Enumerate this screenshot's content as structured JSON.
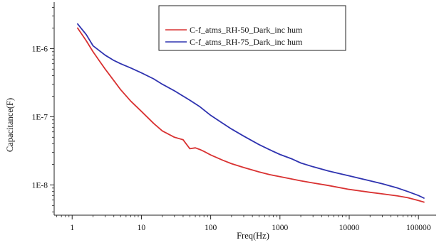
{
  "chart_data": {
    "type": "line",
    "title": "",
    "xlabel": "Freq(Hz)",
    "ylabel": "Capacitance(F)",
    "x_scale": "log",
    "y_scale": "log",
    "xlim": [
      0.55,
      180000
    ],
    "ylim": [
      3.6e-09,
      4.8e-06
    ],
    "x_ticks": [
      1,
      10,
      100,
      1000,
      10000,
      100000
    ],
    "x_tick_labels": [
      "1",
      "10",
      "100",
      "1000",
      "10000",
      "100000"
    ],
    "y_ticks": [
      1e-08,
      1e-07,
      1e-06
    ],
    "y_tick_labels": [
      "1E-8",
      "1E-7",
      "1E-6"
    ],
    "grid": false,
    "legend_position": "top-right",
    "series": [
      {
        "name": "C-f_atms_RH-50_Dark_inc hum",
        "color": "#d93232",
        "x": [
          1.2,
          1.6,
          2,
          2.5,
          3,
          4,
          5,
          7,
          10,
          15,
          20,
          30,
          40,
          50,
          60,
          70,
          80,
          100,
          150,
          200,
          300,
          500,
          700,
          1000,
          2000,
          3000,
          5000,
          10000,
          20000,
          30000,
          50000,
          70000,
          100000,
          120000
        ],
        "y": [
          2e-06,
          1.3e-06,
          9e-07,
          6.5e-07,
          5e-07,
          3.4e-07,
          2.5e-07,
          1.7e-07,
          1.2e-07,
          8e-08,
          6.2e-08,
          5e-08,
          4.6e-08,
          3.4e-08,
          3.5e-08,
          3.3e-08,
          3.1e-08,
          2.75e-08,
          2.3e-08,
          2.05e-08,
          1.8e-08,
          1.55e-08,
          1.42e-08,
          1.32e-08,
          1.15e-08,
          1.07e-08,
          9.8e-09,
          8.6e-09,
          7.8e-09,
          7.4e-09,
          6.9e-09,
          6.5e-09,
          5.9e-09,
          5.6e-09
        ]
      },
      {
        "name": "C-f_atms_RH-75_Dark_inc hum",
        "color": "#2f33b0",
        "x": [
          1.2,
          1.6,
          2,
          3,
          4,
          5,
          7,
          10,
          15,
          20,
          30,
          50,
          70,
          100,
          150,
          200,
          300,
          500,
          700,
          1000,
          1500,
          2000,
          3000,
          5000,
          7000,
          10000,
          20000,
          30000,
          50000,
          70000,
          100000,
          120000
        ],
        "y": [
          2.3e-06,
          1.6e-06,
          1.1e-06,
          8e-07,
          6.7e-07,
          6e-07,
          5.2e-07,
          4.4e-07,
          3.6e-07,
          3e-07,
          2.4e-07,
          1.75e-07,
          1.4e-07,
          1.05e-07,
          8e-08,
          6.6e-08,
          5.2e-08,
          3.9e-08,
          3.3e-08,
          2.8e-08,
          2.4e-08,
          2.1e-08,
          1.85e-08,
          1.6e-08,
          1.48e-08,
          1.36e-08,
          1.15e-08,
          1.04e-08,
          9e-09,
          8e-09,
          7e-09,
          6.4e-09
        ]
      }
    ]
  }
}
